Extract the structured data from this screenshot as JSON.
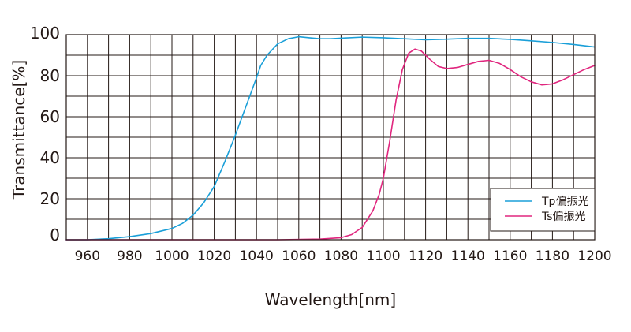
{
  "chart_data": {
    "type": "line",
    "title": "",
    "xlabel": "Wavelength[nm]",
    "ylabel": "Transmittance[%]",
    "xlim": [
      950,
      1200
    ],
    "ylim": [
      0,
      100
    ],
    "x_ticks": [
      960,
      980,
      1000,
      1020,
      1040,
      1060,
      1080,
      1100,
      1120,
      1140,
      1160,
      1180,
      1200
    ],
    "y_ticks": [
      0,
      20,
      40,
      60,
      80,
      100
    ],
    "grid": true,
    "legend_position": "bottom-right",
    "series": [
      {
        "name": "Tp偏振光",
        "color": "#1a9fd8",
        "x": [
          950,
          960,
          970,
          980,
          990,
          1000,
          1005,
          1010,
          1015,
          1020,
          1025,
          1030,
          1035,
          1040,
          1042,
          1045,
          1050,
          1055,
          1060,
          1065,
          1070,
          1075,
          1080,
          1090,
          1100,
          1110,
          1120,
          1130,
          1140,
          1150,
          1160,
          1170,
          1180,
          1190,
          1200
        ],
        "values": [
          0,
          0,
          0.5,
          1.5,
          3,
          5.5,
          8,
          12,
          18,
          26,
          38,
          51,
          65,
          79,
          85,
          90,
          95.5,
          98,
          99,
          98.5,
          98,
          98,
          98.3,
          98.8,
          98.5,
          98,
          97.5,
          97.8,
          98.2,
          98.2,
          97.7,
          97,
          96.2,
          95.2,
          94
        ]
      },
      {
        "name": "Ts偏振光",
        "color": "#e0267e",
        "x": [
          950,
          1000,
          1050,
          1070,
          1080,
          1085,
          1090,
          1095,
          1098,
          1100,
          1103,
          1106,
          1109,
          1112,
          1115,
          1118,
          1122,
          1126,
          1130,
          1135,
          1140,
          1145,
          1150,
          1155,
          1160,
          1165,
          1170,
          1175,
          1180,
          1185,
          1190,
          1195,
          1200
        ],
        "values": [
          0,
          0,
          0,
          0.3,
          1,
          2.5,
          6,
          14,
          22,
          30,
          48,
          68,
          83,
          91,
          93,
          92,
          88,
          84.5,
          83.5,
          84,
          85.5,
          87,
          87.5,
          86,
          83,
          79.5,
          77,
          75.5,
          76,
          78,
          80.5,
          83,
          85
        ]
      }
    ]
  }
}
